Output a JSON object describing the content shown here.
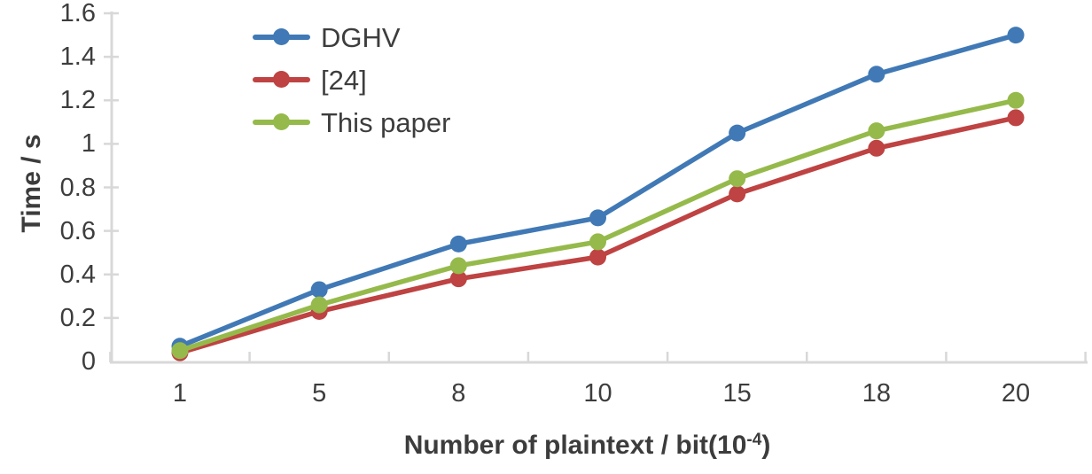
{
  "chart_data": {
    "type": "line",
    "title": "",
    "xlabel": "Number of plaintext / bit(10-4)",
    "xlabel_parts": {
      "prefix": "Number of plaintext / bit(10",
      "sup": "-4",
      "suffix": ")"
    },
    "ylabel": "Time / s",
    "categories": [
      "1",
      "5",
      "8",
      "10",
      "15",
      "18",
      "20"
    ],
    "x_values": [
      1,
      5,
      8,
      10,
      15,
      18,
      20
    ],
    "series": [
      {
        "name": "DGHV",
        "color": "#4079B5",
        "values": [
          0.07,
          0.33,
          0.54,
          0.66,
          1.05,
          1.32,
          1.5
        ]
      },
      {
        "name": "[24]",
        "color": "#BE4342",
        "values": [
          0.04,
          0.23,
          0.38,
          0.48,
          0.77,
          0.98,
          1.12
        ]
      },
      {
        "name": "This paper",
        "color": "#95BA4B",
        "values": [
          0.05,
          0.26,
          0.44,
          0.55,
          0.84,
          1.06,
          1.2
        ]
      }
    ],
    "ylim": [
      0,
      1.6
    ],
    "y_ticks": [
      0,
      0.2,
      0.4,
      0.6,
      0.8,
      1,
      1.2,
      1.4,
      1.6
    ],
    "y_tick_labels": [
      "0",
      "0.2",
      "0.4",
      "0.6",
      "0.8",
      "1",
      "1.2",
      "1.4",
      "1.6"
    ],
    "grid": false,
    "legend_position": "top-left-inside",
    "axis_color": "#D8D8D8",
    "text_color": "#3d3d3d",
    "marker": "circle",
    "line_width": 5.5
  }
}
